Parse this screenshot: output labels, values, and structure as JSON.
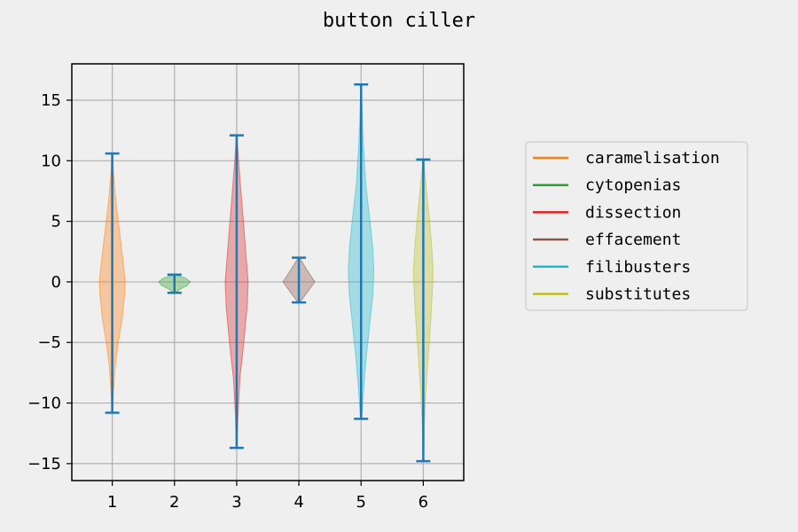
{
  "chart_data": {
    "type": "violin",
    "title": "button ciller",
    "xlabel": "",
    "ylabel": "",
    "x_ticks": [
      "1",
      "2",
      "3",
      "4",
      "5",
      "6"
    ],
    "y_ticks": [
      15,
      10,
      5,
      0,
      -5,
      -10,
      -15
    ],
    "y_tick_labels": [
      "15",
      "10",
      "5",
      "0",
      "−5",
      "−10",
      "−15"
    ],
    "xlim": [
      0.35,
      6.65
    ],
    "ylim": [
      -16.4,
      18.0
    ],
    "grid": true,
    "legend_position": "right",
    "series": [
      {
        "name": "caramelisation",
        "position": 1,
        "min": -10.8,
        "max": 10.6,
        "color": "#ff7f0e",
        "density": [
          [
            -10.8,
            0.02
          ],
          [
            -9,
            0.08
          ],
          [
            -7,
            0.18
          ],
          [
            -5,
            0.38
          ],
          [
            -3,
            0.62
          ],
          [
            -1,
            0.78
          ],
          [
            0,
            0.8
          ],
          [
            1,
            0.74
          ],
          [
            3,
            0.56
          ],
          [
            5,
            0.38
          ],
          [
            7,
            0.2
          ],
          [
            9,
            0.08
          ],
          [
            10.6,
            0.02
          ]
        ]
      },
      {
        "name": "cytopenias",
        "position": 2,
        "min": -0.9,
        "max": 0.6,
        "color": "#2ca02c",
        "density": [
          [
            -0.9,
            0.05
          ],
          [
            -0.6,
            0.35
          ],
          [
            -0.3,
            0.8
          ],
          [
            0,
            1.0
          ],
          [
            0.3,
            0.7
          ],
          [
            0.6,
            0.05
          ]
        ]
      },
      {
        "name": "dissection",
        "position": 3,
        "min": -13.7,
        "max": 12.1,
        "color": "#d62728",
        "density": [
          [
            -13.7,
            0.02
          ],
          [
            -11,
            0.08
          ],
          [
            -8,
            0.2
          ],
          [
            -5,
            0.45
          ],
          [
            -2,
            0.66
          ],
          [
            0,
            0.72
          ],
          [
            2,
            0.6
          ],
          [
            5,
            0.42
          ],
          [
            8,
            0.24
          ],
          [
            10,
            0.12
          ],
          [
            12.1,
            0.02
          ]
        ]
      },
      {
        "name": "effacement",
        "position": 4,
        "min": -1.7,
        "max": 2.0,
        "color": "#8c564b",
        "density": [
          [
            -1.7,
            0.05
          ],
          [
            -1,
            0.45
          ],
          [
            0,
            1.0
          ],
          [
            1,
            0.5
          ],
          [
            2,
            0.05
          ]
        ]
      },
      {
        "name": "filibusters",
        "position": 5,
        "min": -11.3,
        "max": 16.3,
        "color": "#17becf",
        "density": [
          [
            -11.3,
            0.04
          ],
          [
            -9,
            0.15
          ],
          [
            -6,
            0.34
          ],
          [
            -3,
            0.58
          ],
          [
            -1,
            0.74
          ],
          [
            1,
            0.8
          ],
          [
            3,
            0.72
          ],
          [
            5,
            0.56
          ],
          [
            8,
            0.3
          ],
          [
            11,
            0.16
          ],
          [
            13,
            0.09
          ],
          [
            16.3,
            0.02
          ]
        ]
      },
      {
        "name": "substitutes",
        "position": 6,
        "min": -14.8,
        "max": 10.1,
        "color": "#bcbd22",
        "density": [
          [
            -14.8,
            0.02
          ],
          [
            -12,
            0.06
          ],
          [
            -9,
            0.16
          ],
          [
            -6,
            0.32
          ],
          [
            -3,
            0.48
          ],
          [
            0,
            0.6
          ],
          [
            1,
            0.62
          ],
          [
            3,
            0.52
          ],
          [
            5,
            0.4
          ],
          [
            7,
            0.24
          ],
          [
            9,
            0.1
          ],
          [
            10.1,
            0.03
          ]
        ]
      }
    ]
  }
}
